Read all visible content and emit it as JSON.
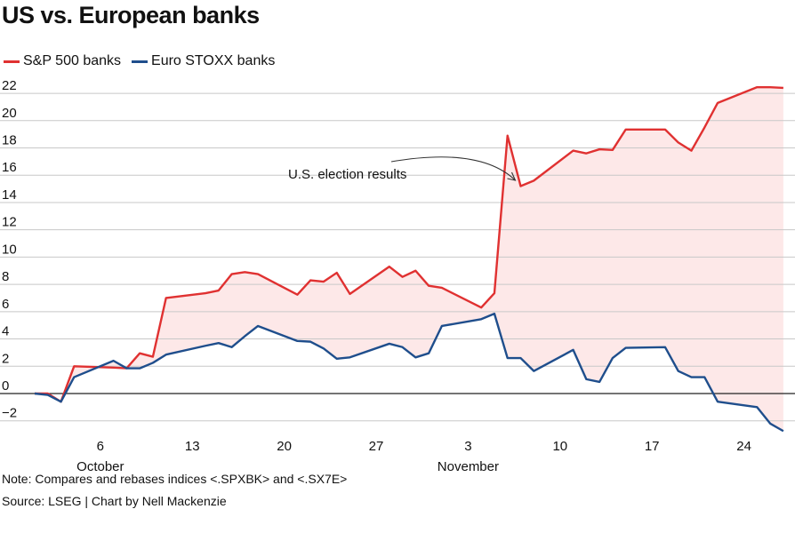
{
  "chart_data": {
    "type": "line",
    "title": "US vs. European banks",
    "legend_position": "top-left",
    "grid": true,
    "ylim": [
      -3,
      23
    ],
    "yticks": [
      -2,
      0,
      2,
      4,
      6,
      8,
      10,
      12,
      14,
      16,
      18,
      20,
      22
    ],
    "ytick_labels": [
      "−2",
      "0",
      "2",
      "4",
      "6",
      "8",
      "10",
      "12",
      "14",
      "16",
      "18",
      "20",
      "22"
    ],
    "xticks": [
      {
        "date": "2024-10-06",
        "label": "6",
        "month": "October"
      },
      {
        "date": "2024-10-13",
        "label": "13"
      },
      {
        "date": "2024-10-20",
        "label": "20"
      },
      {
        "date": "2024-10-27",
        "label": "27"
      },
      {
        "date": "2024-11-03",
        "label": "3",
        "month": "November"
      },
      {
        "date": "2024-11-10",
        "label": "10"
      },
      {
        "date": "2024-11-17",
        "label": "17"
      },
      {
        "date": "2024-11-24",
        "label": "24"
      }
    ],
    "x": [
      "2024-10-01",
      "2024-10-02",
      "2024-10-03",
      "2024-10-04",
      "2024-10-07",
      "2024-10-08",
      "2024-10-09",
      "2024-10-10",
      "2024-10-11",
      "2024-10-14",
      "2024-10-15",
      "2024-10-16",
      "2024-10-17",
      "2024-10-18",
      "2024-10-21",
      "2024-10-22",
      "2024-10-23",
      "2024-10-24",
      "2024-10-25",
      "2024-10-28",
      "2024-10-29",
      "2024-10-30",
      "2024-10-31",
      "2024-11-01",
      "2024-11-04",
      "2024-11-05",
      "2024-11-06",
      "2024-11-07",
      "2024-11-08",
      "2024-11-11",
      "2024-11-12",
      "2024-11-13",
      "2024-11-14",
      "2024-11-15",
      "2024-11-18",
      "2024-11-19",
      "2024-11-20",
      "2024-11-21",
      "2024-11-22",
      "2024-11-25",
      "2024-11-26",
      "2024-11-27"
    ],
    "series": [
      {
        "name": "S&P 500 banks",
        "color": "#e03131",
        "values": [
          0,
          0,
          -0.6,
          2.0,
          1.9,
          1.85,
          2.95,
          2.7,
          7.0,
          7.35,
          7.55,
          8.75,
          8.9,
          8.75,
          7.25,
          8.3,
          8.2,
          8.85,
          7.3,
          9.3,
          8.55,
          9.0,
          7.9,
          7.75,
          6.3,
          7.35,
          18.9,
          15.2,
          15.6,
          17.8,
          17.6,
          17.9,
          17.85,
          19.35,
          19.35,
          18.4,
          17.8,
          19.5,
          21.3,
          22.45,
          22.45,
          22.4
        ]
      },
      {
        "name": "Euro STOXX banks",
        "color": "#1f4e8c",
        "values": [
          0,
          -0.1,
          -0.6,
          1.2,
          2.4,
          1.85,
          1.85,
          2.25,
          2.85,
          3.5,
          3.7,
          3.4,
          4.2,
          4.95,
          3.85,
          3.8,
          3.3,
          2.55,
          2.65,
          3.65,
          3.4,
          2.65,
          2.95,
          4.95,
          5.45,
          5.85,
          2.6,
          2.6,
          1.65,
          3.2,
          1.05,
          0.85,
          2.6,
          3.35,
          3.4,
          1.65,
          1.2,
          1.2,
          -0.6,
          -1.0,
          -2.2,
          -2.75
        ]
      }
    ],
    "fill_between_color": "#fde8e8",
    "annotation": {
      "text": "U.S. election results",
      "date": "2024-11-07"
    }
  },
  "note": "Note: Compares and rebases indices <.SPXBK> and <.SX7E>",
  "source": "Source: LSEG | Chart by Nell Mackenzie"
}
